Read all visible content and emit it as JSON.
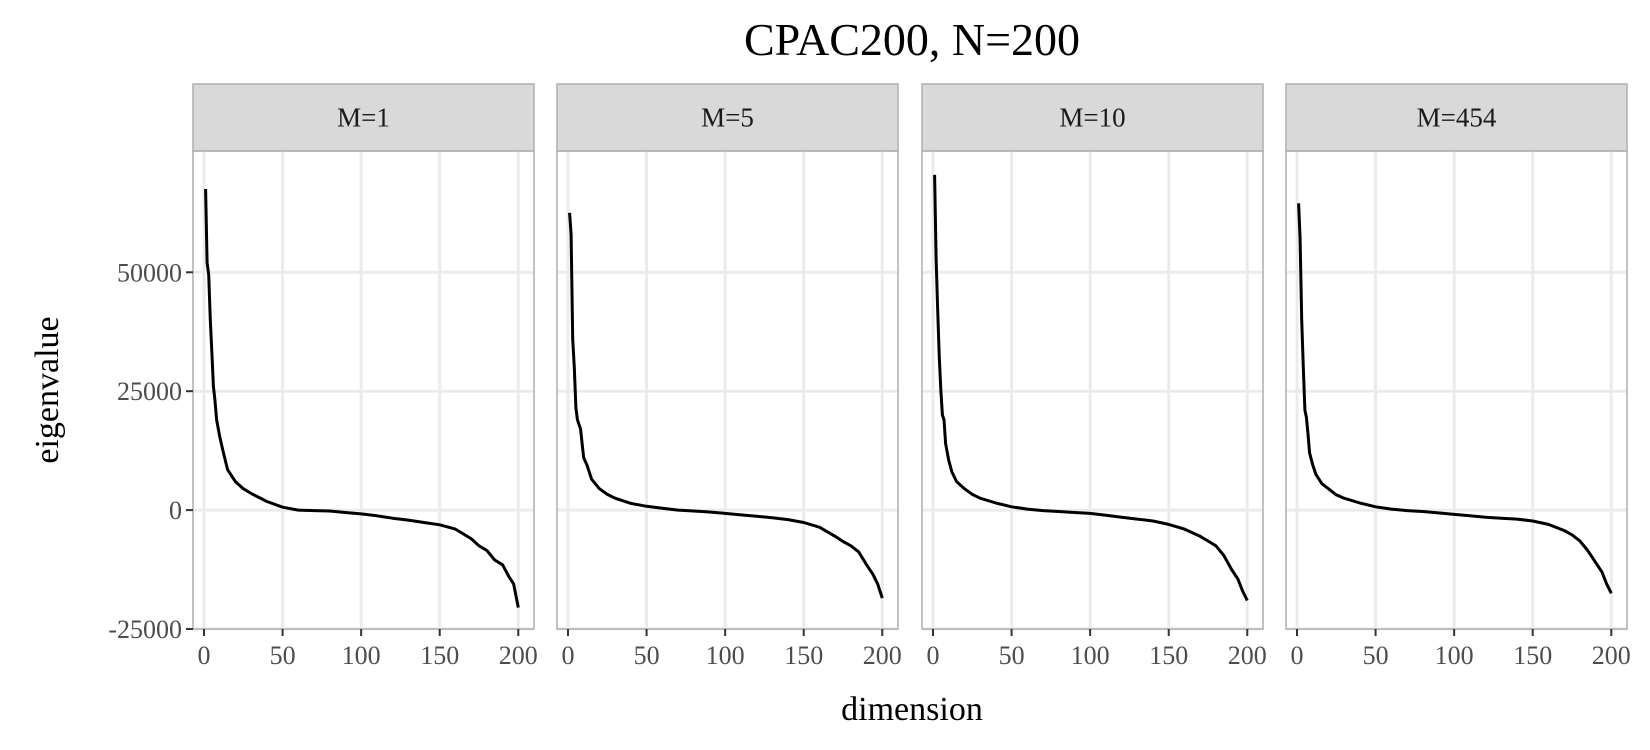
{
  "chart_data": {
    "type": "line",
    "title": "CPAC200, N=200",
    "xlabel": "dimension",
    "ylabel": "eigenvalue",
    "xlim": [
      -7,
      210
    ],
    "ylim": [
      -25000,
      75500
    ],
    "x_ticks": [
      0,
      50,
      100,
      150,
      200
    ],
    "x_tick_labels": [
      "0",
      "50",
      "100",
      "150",
      "200"
    ],
    "y_ticks": [
      -25000,
      0,
      25000,
      50000
    ],
    "y_tick_labels": [
      "-25000",
      "0",
      "25000",
      "50000"
    ],
    "grid": true,
    "legend": "none",
    "line_color": "#000000",
    "panels": [
      {
        "label": "M=1",
        "x": [
          1,
          2,
          3,
          4,
          5,
          6,
          7,
          8,
          10,
          12,
          15,
          20,
          25,
          30,
          40,
          50,
          60,
          70,
          80,
          90,
          100,
          110,
          120,
          130,
          140,
          150,
          160,
          170,
          175,
          180,
          185,
          190,
          194,
          197,
          200
        ],
        "y": [
          67500,
          52000,
          49500,
          40000,
          33000,
          26000,
          23000,
          19000,
          15500,
          12500,
          8500,
          6000,
          4500,
          3500,
          1800,
          600,
          0,
          -100,
          -200,
          -500,
          -800,
          -1200,
          -1700,
          -2100,
          -2600,
          -3100,
          -4000,
          -6000,
          -7500,
          -8500,
          -10500,
          -11500,
          -14000,
          -15500,
          -20500
        ]
      },
      {
        "label": "M=5",
        "x": [
          1,
          2,
          3,
          4,
          5,
          6,
          8,
          9,
          10,
          12,
          15,
          20,
          25,
          30,
          40,
          50,
          60,
          70,
          80,
          90,
          100,
          110,
          120,
          130,
          140,
          150,
          160,
          170,
          175,
          180,
          185,
          190,
          194,
          197,
          200
        ],
        "y": [
          62500,
          58000,
          36000,
          30000,
          21500,
          19000,
          17000,
          14000,
          11000,
          9500,
          6500,
          4500,
          3300,
          2500,
          1400,
          800,
          400,
          0,
          -200,
          -400,
          -700,
          -1000,
          -1300,
          -1600,
          -2000,
          -2600,
          -3600,
          -5500,
          -6600,
          -7500,
          -8800,
          -11500,
          -13500,
          -15500,
          -18500
        ]
      },
      {
        "label": "M=10",
        "x": [
          1,
          2,
          3,
          4,
          5,
          6,
          7,
          8,
          10,
          12,
          15,
          20,
          25,
          30,
          40,
          50,
          60,
          70,
          80,
          90,
          100,
          110,
          120,
          130,
          140,
          150,
          160,
          170,
          175,
          180,
          185,
          190,
          194,
          197,
          200
        ],
        "y": [
          70500,
          53000,
          42000,
          32000,
          25000,
          20000,
          19000,
          14000,
          10500,
          8000,
          6000,
          4500,
          3300,
          2500,
          1500,
          700,
          200,
          -100,
          -300,
          -500,
          -700,
          -1100,
          -1500,
          -1900,
          -2300,
          -3000,
          -4000,
          -5500,
          -6500,
          -7500,
          -9500,
          -12500,
          -14500,
          -17000,
          -19000
        ]
      },
      {
        "label": "M=454",
        "x": [
          1,
          2,
          3,
          4,
          5,
          6,
          7,
          8,
          10,
          12,
          14,
          16,
          20,
          25,
          30,
          40,
          50,
          60,
          70,
          80,
          90,
          100,
          110,
          120,
          130,
          140,
          150,
          160,
          170,
          175,
          180,
          185,
          190,
          194,
          197,
          200
        ],
        "y": [
          64500,
          57000,
          40000,
          30000,
          21000,
          19500,
          16000,
          12000,
          9500,
          7500,
          6500,
          5500,
          4500,
          3200,
          2500,
          1500,
          700,
          200,
          -100,
          -300,
          -600,
          -900,
          -1200,
          -1500,
          -1700,
          -1900,
          -2300,
          -3000,
          -4300,
          -5200,
          -6500,
          -8500,
          -11000,
          -13000,
          -15500,
          -17500
        ]
      }
    ]
  }
}
